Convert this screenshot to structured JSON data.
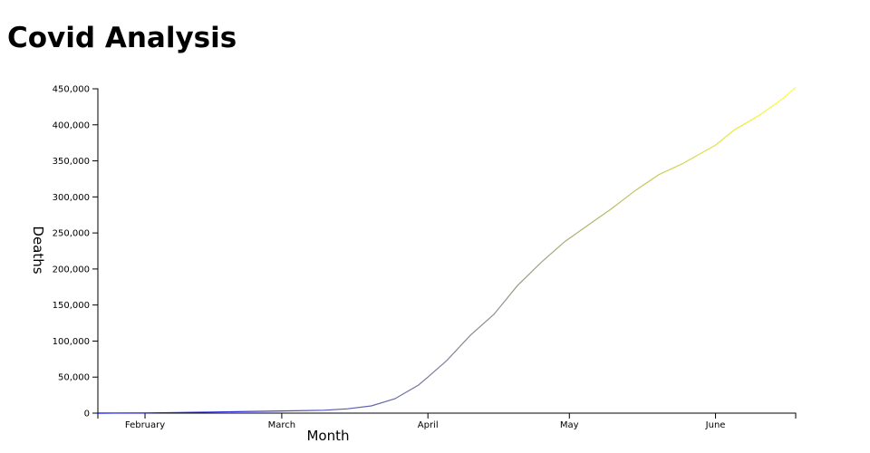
{
  "title": "Covid Analysis",
  "chart_data": {
    "type": "line",
    "xlabel": "Month",
    "ylabel": "Deaths",
    "xlim": [
      "2020-01-22",
      "2020-06-18"
    ],
    "ylim": [
      0,
      450000
    ],
    "x_ticks": [
      {
        "date": "2020-02-01",
        "label": "February"
      },
      {
        "date": "2020-03-01",
        "label": "March"
      },
      {
        "date": "2020-04-01",
        "label": "April"
      },
      {
        "date": "2020-05-01",
        "label": "May"
      },
      {
        "date": "2020-06-01",
        "label": "June"
      }
    ],
    "y_ticks": [
      0,
      50000,
      100000,
      150000,
      200000,
      250000,
      300000,
      350000,
      400000,
      450000
    ],
    "y_tick_labels": [
      "0",
      "50,000",
      "100,000",
      "150,000",
      "200,000",
      "250,000",
      "300,000",
      "350,000",
      "400,000",
      "450,000"
    ],
    "grid": false,
    "line_gradient": [
      "#0000ff",
      "#ffff33"
    ],
    "points": [
      [
        "2020-01-22",
        0
      ],
      [
        "2020-02-01",
        300
      ],
      [
        "2020-02-15",
        1500
      ],
      [
        "2020-03-01",
        3000
      ],
      [
        "2020-03-10",
        4000
      ],
      [
        "2020-03-15",
        6000
      ],
      [
        "2020-03-20",
        10000
      ],
      [
        "2020-03-25",
        20000
      ],
      [
        "2020-03-30",
        39000
      ],
      [
        "2020-04-01",
        50000
      ],
      [
        "2020-04-05",
        73000
      ],
      [
        "2020-04-10",
        108000
      ],
      [
        "2020-04-15",
        137000
      ],
      [
        "2020-04-20",
        177000
      ],
      [
        "2020-04-25",
        209000
      ],
      [
        "2020-04-30",
        238000
      ],
      [
        "2020-05-05",
        261000
      ],
      [
        "2020-05-10",
        284000
      ],
      [
        "2020-05-15",
        309000
      ],
      [
        "2020-05-20",
        331000
      ],
      [
        "2020-05-25",
        346000
      ],
      [
        "2020-06-01",
        372000
      ],
      [
        "2020-06-05",
        393000
      ],
      [
        "2020-06-10",
        412000
      ],
      [
        "2020-06-15",
        435000
      ],
      [
        "2020-06-18",
        452000
      ]
    ]
  }
}
